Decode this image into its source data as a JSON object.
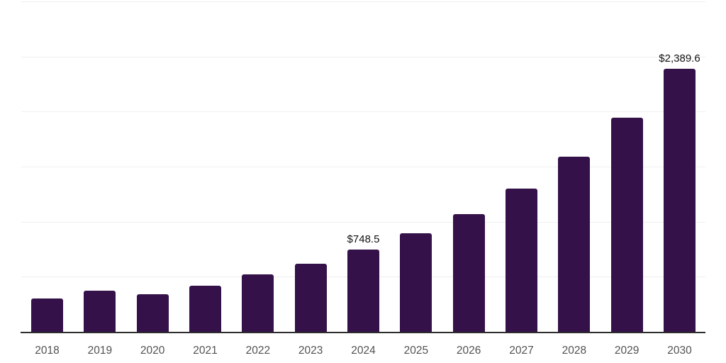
{
  "chart_data": {
    "type": "bar",
    "title": "",
    "xlabel": "",
    "ylabel": "",
    "categories": [
      "2018",
      "2019",
      "2020",
      "2021",
      "2022",
      "2023",
      "2024",
      "2025",
      "2026",
      "2027",
      "2028",
      "2029",
      "2030"
    ],
    "values": [
      300,
      372,
      340,
      420,
      523,
      620,
      748.5,
      892,
      1070,
      1303,
      1592,
      1945,
      2389.6
    ],
    "data_labels": [
      "",
      "",
      "",
      "",
      "",
      "",
      "$748.5",
      "",
      "",
      "",
      "",
      "",
      "$2,389.6"
    ],
    "ylim": [
      0,
      3000
    ],
    "gridline_step": 500,
    "grid": "horizontal gridlines only, y-axis tick labels hidden",
    "legend": "none",
    "colors": {
      "bar": "#351149",
      "gridline": "#efefef",
      "axis_line": "#2d2d2d",
      "tick_label": "#525252",
      "data_label": "#111111",
      "background": "#ffffff"
    }
  }
}
